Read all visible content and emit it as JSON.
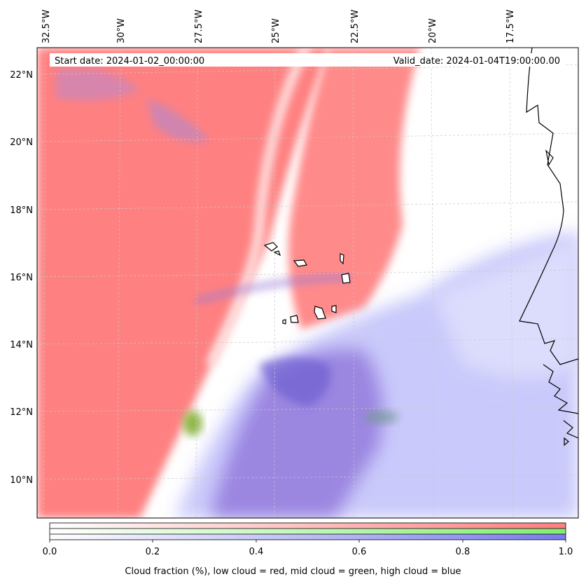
{
  "header": {
    "start_date": "Start date: 2024-01-02_00:00:00",
    "valid_date": "Valid_date: 2024-01-04T19:00:00.00"
  },
  "map": {
    "lon_labels": [
      "32.5°W",
      "30°W",
      "27.5°W",
      "25°W",
      "22.5°W",
      "20°W",
      "17.5°W"
    ],
    "lat_labels": [
      "22°N",
      "20°N",
      "18°N",
      "16°N",
      "14°N",
      "12°N",
      "10°N"
    ]
  },
  "colorbar": {
    "ticks": [
      "0.0",
      "0.2",
      "0.4",
      "0.6",
      "0.8",
      "1.0"
    ],
    "low_color": "#ff7f7f",
    "mid_color": "#80ee70",
    "high_color": "#7a7af0"
  },
  "caption": "Cloud fraction (%), low cloud = red, mid cloud = green, high cloud = blue"
}
